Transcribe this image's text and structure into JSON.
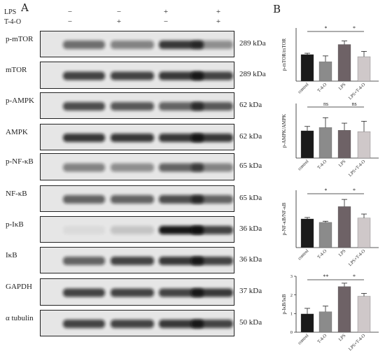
{
  "panels": {
    "a": "A",
    "b": "B"
  },
  "treatments": {
    "row1_label": "LPS",
    "row2_label": "T-4-O",
    "row1_signs": [
      "−",
      "−",
      "+",
      "+"
    ],
    "row2_signs": [
      "−",
      "+",
      "−",
      "+"
    ]
  },
  "blots": [
    {
      "name": "p-mTOR",
      "kda": "289 kDa",
      "intensity": [
        0.55,
        0.45,
        0.8,
        0.4
      ]
    },
    {
      "name": "mTOR",
      "kda": "289 kDa",
      "intensity": [
        0.75,
        0.75,
        0.8,
        0.75
      ]
    },
    {
      "name": "p-AMPK",
      "kda": "62 kDa",
      "intensity": [
        0.7,
        0.65,
        0.6,
        0.65
      ]
    },
    {
      "name": "AMPK",
      "kda": "62 kDa",
      "intensity": [
        0.8,
        0.8,
        0.8,
        0.8
      ]
    },
    {
      "name": "p-NF-κB",
      "kda": "65 kDa",
      "intensity": [
        0.45,
        0.4,
        0.6,
        0.45
      ]
    },
    {
      "name": "NF-κB",
      "kda": "65 kDa",
      "intensity": [
        0.6,
        0.6,
        0.7,
        0.6
      ]
    },
    {
      "name": "p-IκB",
      "kda": "36 kDa",
      "intensity": [
        0.05,
        0.15,
        0.95,
        0.75
      ]
    },
    {
      "name": "IκB",
      "kda": "36 kDa",
      "intensity": [
        0.6,
        0.75,
        0.8,
        0.75
      ]
    },
    {
      "name": "GAPDH",
      "kda": "37 kDa",
      "intensity": [
        0.75,
        0.75,
        0.75,
        0.8
      ]
    },
    {
      "name": "α tubulin",
      "kda": "50 kDa",
      "intensity": [
        0.75,
        0.75,
        0.8,
        0.75
      ]
    }
  ],
  "colors": {
    "control": "#1a1a1a",
    "T-4-O": "#8b8b8b",
    "LPS": "#6e6266",
    "LPS+T-4-O": "#cfc8c9",
    "band": "#111111",
    "background": "#e6e6e6"
  },
  "chart_data": [
    {
      "type": "bar",
      "categories": [
        "control",
        "T-4-O",
        "LPS",
        "LPS+T-4-O"
      ],
      "values": [
        1.0,
        0.73,
        1.38,
        0.92
      ],
      "errors": [
        0.05,
        0.22,
        0.13,
        0.2
      ],
      "ylabel": "p-mTOR/mTOR",
      "ylim": [
        0,
        2.0
      ],
      "yticks": [],
      "significance": [
        {
          "from": 0,
          "to": 2,
          "label": "*"
        },
        {
          "from": 2,
          "to": 3,
          "label": "*"
        }
      ]
    },
    {
      "type": "bar",
      "categories": [
        "control",
        "T-4-O",
        "LPS",
        "LPS+T-4-O"
      ],
      "values": [
        1.0,
        1.12,
        1.02,
        0.97
      ],
      "errors": [
        0.16,
        0.36,
        0.26,
        0.38
      ],
      "ylabel": "p-AMPK/AMPK",
      "ylim": [
        0,
        2.0
      ],
      "yticks": [],
      "significance": [
        {
          "from": 0,
          "to": 2,
          "label": "ns"
        },
        {
          "from": 2,
          "to": 3,
          "label": "ns"
        }
      ]
    },
    {
      "type": "bar",
      "categories": [
        "control",
        "T-4-O",
        "LPS",
        "LPS+T-4-O"
      ],
      "values": [
        1.0,
        0.88,
        1.43,
        1.03
      ],
      "errors": [
        0.05,
        0.04,
        0.25,
        0.14
      ],
      "ylabel": "p-NF-κB/NF-κB",
      "ylim": [
        0,
        2.0
      ],
      "yticks": [],
      "significance": [
        {
          "from": 0,
          "to": 2,
          "label": "*"
        },
        {
          "from": 2,
          "to": 3,
          "label": "*"
        }
      ]
    },
    {
      "type": "bar",
      "categories": [
        "control",
        "T-4-O",
        "LPS",
        "LPS+T-4-O"
      ],
      "values": [
        0.98,
        1.1,
        2.45,
        1.93
      ],
      "errors": [
        0.3,
        0.3,
        0.18,
        0.15
      ],
      "ylabel": "p-IκB/IκB",
      "ylim": [
        0,
        3
      ],
      "yticks": [
        0,
        1,
        2,
        3
      ],
      "significance": [
        {
          "from": 0,
          "to": 2,
          "label": "**"
        },
        {
          "from": 2,
          "to": 3,
          "label": "*"
        }
      ]
    }
  ]
}
